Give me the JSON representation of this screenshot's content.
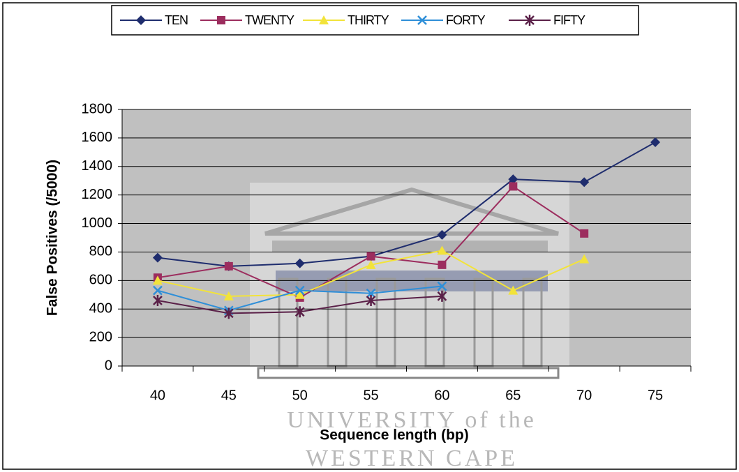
{
  "chart_data": {
    "type": "line",
    "x_label": "Sequence length (bp)",
    "y_label": "False Positives (/5000)",
    "categories": [
      "40",
      "45",
      "50",
      "55",
      "60",
      "65",
      "70",
      "75"
    ],
    "ylim": [
      0,
      1800
    ],
    "yticks": [
      0,
      200,
      400,
      600,
      800,
      1000,
      1200,
      1400,
      1600,
      1800
    ],
    "grid": true,
    "legend": "top",
    "watermark": [
      "UNIVERSITY of the",
      "WESTERN CAPE"
    ],
    "series": [
      {
        "name": "TEN",
        "color": "#1f2d6e",
        "marker": "diamond",
        "values": [
          760,
          700,
          720,
          770,
          920,
          1310,
          1290,
          1570
        ]
      },
      {
        "name": "TWENTY",
        "color": "#9c2d5e",
        "marker": "square",
        "values": [
          620,
          700,
          480,
          770,
          710,
          1260,
          930,
          null
        ]
      },
      {
        "name": "THIRTY",
        "color": "#f2e33a",
        "marker": "triangle",
        "values": [
          600,
          490,
          500,
          710,
          810,
          530,
          750,
          null
        ]
      },
      {
        "name": "FORTY",
        "color": "#2f8fd8",
        "marker": "x",
        "values": [
          530,
          390,
          530,
          510,
          560,
          null,
          null,
          null
        ]
      },
      {
        "name": "FIFTY",
        "color": "#5a2048",
        "marker": "asterisk",
        "values": [
          460,
          370,
          380,
          460,
          490,
          null,
          null,
          null
        ]
      }
    ]
  }
}
